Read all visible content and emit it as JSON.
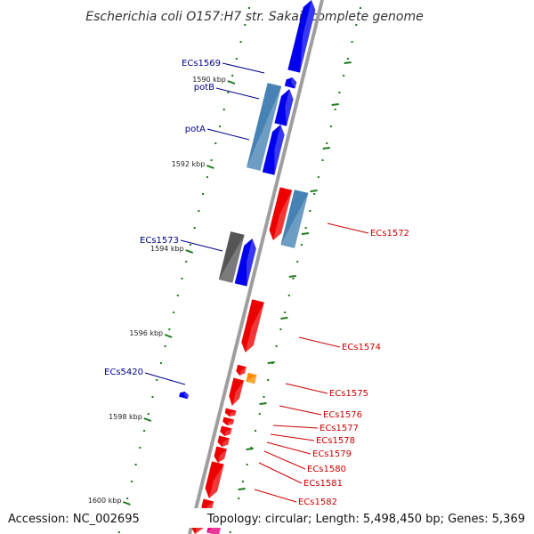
{
  "title": "Escherichia coli O157:H7 str. Sakai, complete genome",
  "footer": {
    "accession": "Accession: NC_002695",
    "summary": "Topology: circular; Length: 5,498,450 bp; Genes: 5,369"
  },
  "colors": {
    "backbone": "#9e9e9e",
    "tick": "#1a7a1a",
    "forward_gene": "#0000ee",
    "reverse_gene": "#ee0000",
    "light_blue": "#4682b4",
    "gray": "#555555",
    "orange": "#ff8c00",
    "magenta": "#e6007e",
    "forward_label": "#00008b",
    "reverse_label": "#cc0000"
  },
  "ticks": [
    {
      "label": "1590 kbp",
      "kbp": 1590
    },
    {
      "label": "1592 kbp",
      "kbp": 1592
    },
    {
      "label": "1594 kbp",
      "kbp": 1594
    },
    {
      "label": "1596 kbp",
      "kbp": 1596
    },
    {
      "label": "1598 kbp",
      "kbp": 1598
    },
    {
      "label": "1600 kbp",
      "kbp": 1600
    }
  ],
  "genes": [
    {
      "name": "ECs1569",
      "strand": "forward",
      "labeled": true
    },
    {
      "name": "potB",
      "strand": "forward",
      "labeled": true
    },
    {
      "name": "potA",
      "strand": "forward",
      "labeled": true
    },
    {
      "name": "ECs1572",
      "strand": "reverse",
      "labeled": true
    },
    {
      "name": "ECs1573",
      "strand": "forward",
      "labeled": true
    },
    {
      "name": "ECs1574",
      "strand": "reverse",
      "labeled": true
    },
    {
      "name": "ECs5420",
      "strand": "forward",
      "labeled": true
    },
    {
      "name": "ECs1575",
      "strand": "reverse",
      "labeled": true
    },
    {
      "name": "ECs1576",
      "strand": "reverse",
      "labeled": true
    },
    {
      "name": "ECs1577",
      "strand": "reverse",
      "labeled": true
    },
    {
      "name": "ECs1578",
      "strand": "reverse",
      "labeled": true
    },
    {
      "name": "ECs1579",
      "strand": "reverse",
      "labeled": true
    },
    {
      "name": "ECs1580",
      "strand": "reverse",
      "labeled": true
    },
    {
      "name": "ECs1581",
      "strand": "reverse",
      "labeled": true
    },
    {
      "name": "ECs1582",
      "strand": "reverse",
      "labeled": true
    }
  ]
}
